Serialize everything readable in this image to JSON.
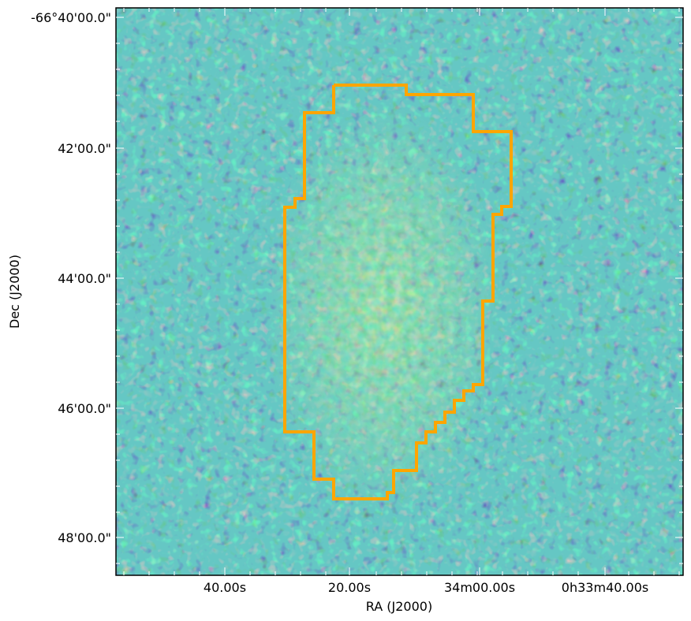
{
  "figure": {
    "x_axis_label": "RA (J2000)",
    "y_axis_label": "Dec (J2000)",
    "x_tick_labels": [
      "40.00s",
      "20.00s",
      "34m00.00s",
      "0h33m40.00s"
    ],
    "y_tick_labels": [
      "-66°40'00.0\"",
      "42'00.0\"",
      "44'00.0\"",
      "46'00.0\"",
      "48'00.0\""
    ],
    "colormap": [
      "#440154",
      "#3b528b",
      "#21918c",
      "#5ec962",
      "#fde725"
    ],
    "background_color": "#2a8a8a",
    "region_color": "#ffa500",
    "region_label": "",
    "frame_color": "#000000"
  }
}
